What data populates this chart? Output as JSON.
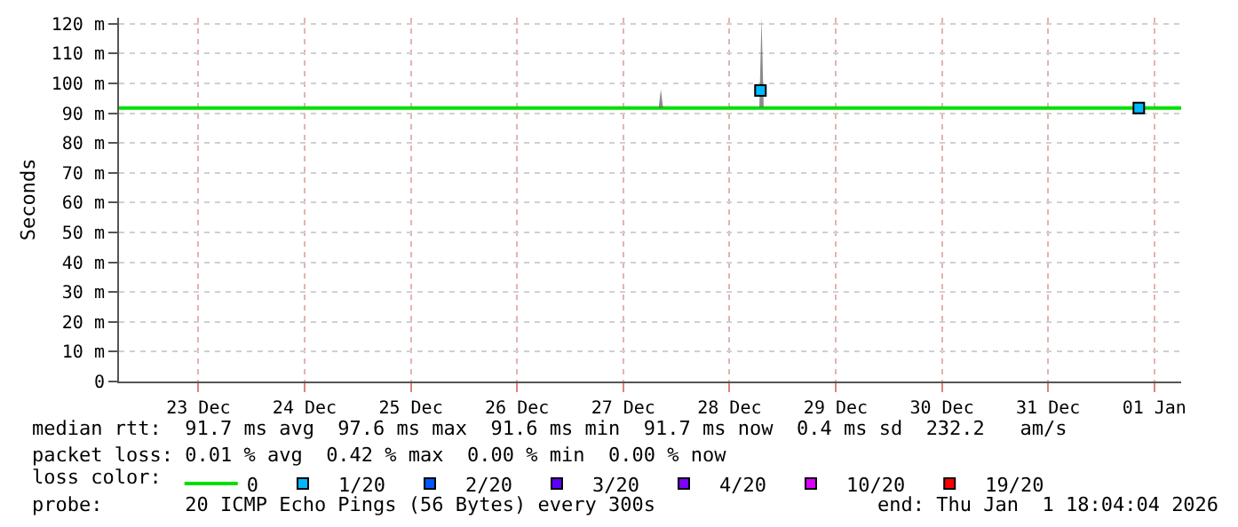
{
  "chart_data": {
    "type": "line",
    "ylabel": "Seconds",
    "xlim": [
      "2025-12-22T18:04",
      "2026-01-01T18:04"
    ],
    "xticks": [
      {
        "value": "2025-12-23T12:00",
        "label": "23 Dec"
      },
      {
        "value": "2025-12-24T12:00",
        "label": "24 Dec"
      },
      {
        "value": "2025-12-25T12:00",
        "label": "25 Dec"
      },
      {
        "value": "2025-12-26T12:00",
        "label": "26 Dec"
      },
      {
        "value": "2025-12-27T12:00",
        "label": "27 Dec"
      },
      {
        "value": "2025-12-28T12:00",
        "label": "28 Dec"
      },
      {
        "value": "2025-12-29T12:00",
        "label": "29 Dec"
      },
      {
        "value": "2025-12-30T12:00",
        "label": "30 Dec"
      },
      {
        "value": "2025-12-31T12:00",
        "label": "31 Dec"
      },
      {
        "value": "2026-01-01T12:00",
        "label": "01 Jan"
      }
    ],
    "ylim": [
      0,
      122
    ],
    "yticks": [
      {
        "value": 0,
        "label": "0"
      },
      {
        "value": 10,
        "label": "10 m"
      },
      {
        "value": 20,
        "label": "20 m"
      },
      {
        "value": 30,
        "label": "30 m"
      },
      {
        "value": 40,
        "label": "40 m"
      },
      {
        "value": 50,
        "label": "50 m"
      },
      {
        "value": 60,
        "label": "60 m"
      },
      {
        "value": 70,
        "label": "70 m"
      },
      {
        "value": 80,
        "label": "80 m"
      },
      {
        "value": 90,
        "label": "90 m"
      },
      {
        "value": 100,
        "label": "100 m"
      },
      {
        "value": 110,
        "label": "110 m"
      },
      {
        "value": 120,
        "label": "120 m"
      }
    ],
    "grid": true,
    "legend": "bottom",
    "legend_title": "loss color:",
    "series": [
      {
        "name": "0",
        "color": "#00e000",
        "x": [
          "2025-12-22T18:04",
          "2025-12-27T20:00",
          "2025-12-27T20:30",
          "2025-12-27T21:00",
          "2025-12-28T18:45",
          "2025-12-28T19:15",
          "2025-12-28T19:45",
          "2026-01-01T18:04"
        ],
        "values": [
          91.7,
          91.7,
          91.7,
          91.7,
          91.7,
          91.7,
          91.7,
          91.7
        ],
        "lower": [
          91.7,
          91.7,
          91.7,
          91.7,
          91.7,
          92,
          91.7,
          91.7
        ],
        "upper": [
          91.7,
          91.7,
          98,
          91.7,
          91.7,
          122,
          91.7,
          91.7
        ]
      },
      {
        "name": "1/20",
        "type": "scatter",
        "marker": "square",
        "color": "#00b8ff",
        "x": [
          "2025-12-28T19:00",
          "2026-01-01T08:30"
        ],
        "values": [
          97.6,
          91.7
        ]
      },
      {
        "name": "2/20",
        "type": "scatter",
        "marker": "square",
        "color": "#0059ff"
      },
      {
        "name": "3/20",
        "type": "scatter",
        "marker": "square",
        "color": "#5e00ff"
      },
      {
        "name": "4/20",
        "type": "scatter",
        "marker": "square",
        "color": "#7e00ff"
      },
      {
        "name": "10/20",
        "type": "scatter",
        "marker": "square",
        "color": "#dd00ff"
      },
      {
        "name": "19/20",
        "type": "scatter",
        "marker": "square",
        "color": "#ff0000"
      }
    ],
    "annotations": [
      "median rtt:  91.7 ms avg  97.6 ms max  91.6 ms min  91.7 ms now  0.4 ms sd  232.2   am/s",
      "packet loss: 0.01 % avg  0.42 % max  0.00 % min  0.00 % now",
      "probe:       20 ICMP Echo Pings (56 Bytes) every 300s",
      "end: Thu Jan  1 18:04:04 2026"
    ]
  }
}
